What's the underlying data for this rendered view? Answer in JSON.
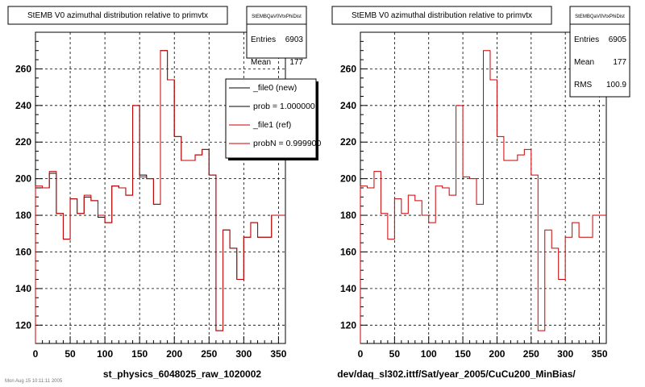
{
  "chart_data": [
    {
      "type": "histogram",
      "title": "StEMB V0 azimuthal distribution relative to primvtx",
      "xlim": [
        0,
        360
      ],
      "ylim": [
        110,
        280
      ],
      "x_ticks": [
        0,
        50,
        100,
        150,
        200,
        250,
        300,
        350
      ],
      "y_ticks": [
        120,
        140,
        160,
        180,
        200,
        220,
        240,
        260
      ],
      "grid": true,
      "bin_width": 10,
      "series": [
        {
          "name": "_file0 (new)",
          "color": "#000000",
          "values": [
            195,
            195,
            203,
            181,
            167,
            189,
            181,
            190,
            188,
            179,
            176,
            196,
            195,
            191,
            240,
            202,
            200,
            186,
            270,
            254,
            223,
            210,
            210,
            213,
            216,
            202,
            117,
            172,
            162,
            145,
            168,
            176,
            168,
            168,
            180,
            180
          ]
        },
        {
          "name": "_file1 (ref)",
          "color": "#cc0000",
          "values": [
            196,
            195,
            204,
            181,
            167,
            189,
            181,
            191,
            188,
            180,
            176,
            196,
            195,
            191,
            240,
            201,
            200,
            186,
            270,
            254,
            223,
            210,
            210,
            213,
            216,
            202,
            117,
            172,
            162,
            145,
            168,
            176,
            168,
            168,
            180,
            180
          ]
        }
      ],
      "stats": {
        "title": "StEMBQaV0VtxPhiDist",
        "entries_label": "Entries",
        "entries": "6903",
        "mean_label": "Mean",
        "mean": "177"
      },
      "legend": {
        "position": "top-right",
        "entries": [
          {
            "label": "_file0 (new)",
            "color": "#000000"
          },
          {
            "label": "prob = 1.000000",
            "color": "#000000"
          },
          {
            "label": "_file1 (ref)",
            "color": "#cc0000"
          },
          {
            "label": "probN = 0.999900",
            "color": "#cc0000"
          }
        ]
      },
      "footer_label": "st_physics_6048025_raw_1020002"
    },
    {
      "type": "histogram",
      "title": "StEMB V0 azimuthal distribution relative to primvtx",
      "xlim": [
        0,
        360
      ],
      "ylim": [
        110,
        280
      ],
      "x_ticks": [
        0,
        50,
        100,
        150,
        200,
        250,
        300,
        350
      ],
      "y_ticks": [
        120,
        140,
        160,
        180,
        200,
        220,
        240,
        260
      ],
      "grid": true,
      "bin_width": 10,
      "series": [
        {
          "name": "_file1 (ref)",
          "color": "#cc0000",
          "values": [
            196,
            195,
            204,
            181,
            167,
            189,
            181,
            191,
            188,
            180,
            176,
            196,
            195,
            191,
            240,
            201,
            200,
            186,
            270,
            254,
            223,
            210,
            210,
            213,
            216,
            202,
            117,
            172,
            162,
            145,
            168,
            176,
            168,
            168,
            180,
            180
          ]
        }
      ],
      "stats": {
        "title": "StEMBQaV0VtxPhiDist",
        "entries_label": "Entries",
        "entries": "6905",
        "mean_label": "Mean",
        "mean": "177",
        "rms_label": "RMS",
        "rms": "100.9"
      },
      "footer_label": "dev/daq_sl302.ittf/Sat/year_2005/CuCu200_MinBias/"
    }
  ],
  "corner_note": "Mon Aug 15 10:11:11 2005"
}
